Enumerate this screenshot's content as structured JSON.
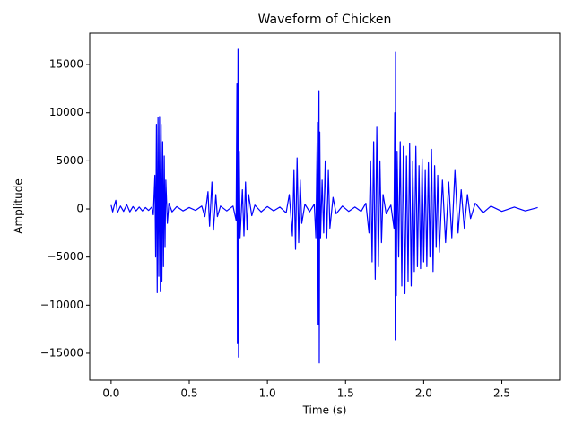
{
  "chart_data": {
    "type": "line",
    "title": "Waveform of Chicken",
    "xlabel": "Time (s)",
    "ylabel": "Amplitude",
    "xlim": [
      -0.137,
      2.87
    ],
    "ylim": [
      -17800,
      18270
    ],
    "xticks": [
      {
        "value": 0,
        "label": "0.0"
      },
      0.5,
      {
        "value": 1,
        "label": "1.0"
      },
      1.5,
      {
        "value": 2,
        "label": "2.0"
      },
      2.5
    ],
    "yticks": [
      {
        "value": -15000,
        "label": "−15000"
      },
      {
        "value": -10000,
        "label": "−10000"
      },
      {
        "value": -5000,
        "label": "−5000"
      },
      0,
      5000,
      10000,
      15000
    ],
    "grid": false,
    "series": [
      {
        "name": "Chicken",
        "color": "#0000ff",
        "x": [
          0,
          0.01,
          0.02,
          0.03,
          0.04,
          0.06,
          0.08,
          0.1,
          0.12,
          0.14,
          0.16,
          0.18,
          0.2,
          0.22,
          0.24,
          0.26,
          0.27,
          0.28,
          0.285,
          0.29,
          0.295,
          0.3,
          0.305,
          0.31,
          0.315,
          0.32,
          0.325,
          0.33,
          0.335,
          0.34,
          0.345,
          0.35,
          0.36,
          0.37,
          0.39,
          0.42,
          0.46,
          0.5,
          0.54,
          0.58,
          0.6,
          0.62,
          0.63,
          0.645,
          0.655,
          0.67,
          0.68,
          0.7,
          0.74,
          0.78,
          0.8,
          0.805,
          0.808,
          0.812,
          0.815,
          0.82,
          0.825,
          0.84,
          0.85,
          0.86,
          0.87,
          0.88,
          0.9,
          0.92,
          0.96,
          1.0,
          1.04,
          1.08,
          1.12,
          1.14,
          1.16,
          1.17,
          1.18,
          1.19,
          1.2,
          1.21,
          1.22,
          1.24,
          1.27,
          1.3,
          1.31,
          1.32,
          1.325,
          1.33,
          1.332,
          1.335,
          1.34,
          1.35,
          1.36,
          1.37,
          1.38,
          1.39,
          1.4,
          1.42,
          1.44,
          1.48,
          1.52,
          1.56,
          1.6,
          1.63,
          1.65,
          1.66,
          1.67,
          1.68,
          1.69,
          1.7,
          1.71,
          1.72,
          1.73,
          1.74,
          1.76,
          1.79,
          1.81,
          1.815,
          1.818,
          1.82,
          1.825,
          1.83,
          1.84,
          1.85,
          1.86,
          1.87,
          1.88,
          1.89,
          1.9,
          1.91,
          1.92,
          1.93,
          1.94,
          1.95,
          1.96,
          1.97,
          1.98,
          1.99,
          2.0,
          2.01,
          2.02,
          2.03,
          2.04,
          2.05,
          2.06,
          2.07,
          2.08,
          2.09,
          2.1,
          2.12,
          2.14,
          2.16,
          2.18,
          2.2,
          2.22,
          2.24,
          2.26,
          2.28,
          2.3,
          2.33,
          2.38,
          2.43,
          2.5,
          2.58,
          2.65,
          2.73
        ],
        "values": [
          400,
          -300,
          350,
          900,
          -400,
          300,
          -250,
          450,
          -300,
          250,
          -200,
          200,
          -200,
          150,
          -150,
          200,
          -600,
          3500,
          -5000,
          8800,
          -8700,
          9500,
          -7000,
          9600,
          -8600,
          8800,
          -7500,
          7000,
          -6000,
          5500,
          -4000,
          3000,
          -1500,
          600,
          -300,
          250,
          -200,
          150,
          -150,
          300,
          -800,
          1800,
          -1800,
          2800,
          -2200,
          1500,
          -800,
          300,
          -200,
          300,
          -1200,
          13000,
          -14000,
          16600,
          -15400,
          6000,
          -3000,
          2000,
          -2800,
          2800,
          -2200,
          1500,
          -700,
          400,
          -300,
          250,
          -200,
          200,
          -400,
          1500,
          -2800,
          4000,
          -4200,
          5300,
          -3500,
          3000,
          -1500,
          500,
          -300,
          500,
          -3000,
          9000,
          -12000,
          12300,
          -16000,
          8000,
          -3000,
          3000,
          -2500,
          5000,
          -3000,
          4000,
          -2000,
          1200,
          -500,
          300,
          -250,
          200,
          -250,
          600,
          -2500,
          5000,
          -5500,
          7000,
          -7300,
          8500,
          -6000,
          5000,
          -3500,
          1500,
          -500,
          400,
          -2000,
          10000,
          -13600,
          16300,
          -9000,
          6000,
          -5000,
          7000,
          -8000,
          6500,
          -8800,
          5500,
          -7500,
          6800,
          -8000,
          5000,
          -6500,
          6500,
          -6000,
          4500,
          -6200,
          5200,
          -5500,
          4000,
          -6000,
          4800,
          -5000,
          6200,
          -6500,
          4500,
          -4000,
          3500,
          -4500,
          3000,
          -3500,
          2800,
          -3000,
          4000,
          -2500,
          2000,
          -2000,
          1500,
          -1000,
          600,
          -400,
          300,
          -250,
          200,
          -200,
          150
        ]
      }
    ]
  }
}
